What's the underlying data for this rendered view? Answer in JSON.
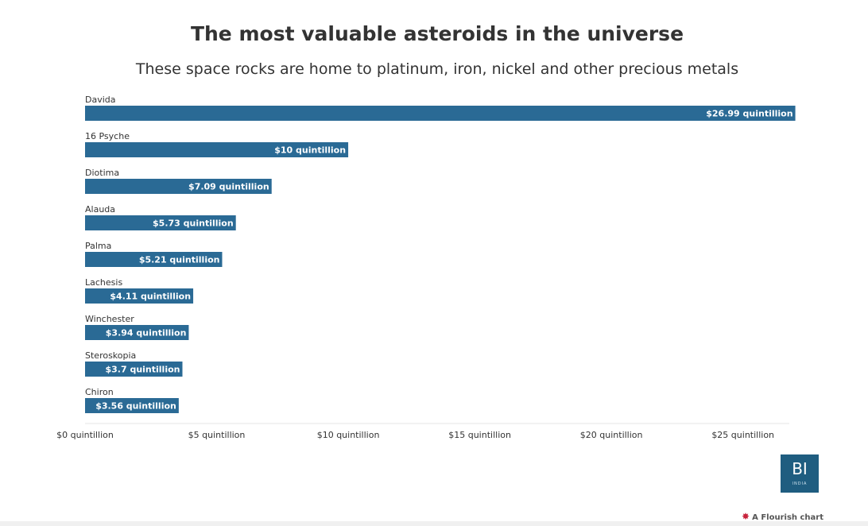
{
  "title": "The most valuable asteroids in the universe",
  "subtitle": "These space rocks are home to platinum, iron, nickel and other precious metals",
  "chart_data": {
    "type": "bar",
    "orientation": "horizontal",
    "categories": [
      "Davida",
      "16 Psyche",
      "Diotima",
      "Alauda",
      "Palma",
      "Lachesis",
      "Winchester",
      "Steroskopia",
      "Chiron"
    ],
    "values": [
      26.99,
      10,
      7.09,
      5.73,
      5.21,
      4.11,
      3.94,
      3.7,
      3.56
    ],
    "value_labels": [
      "$26.99 quintillion",
      "$10 quintillion",
      "$7.09 quintillion",
      "$5.73 quintillion",
      "$5.21 quintillion",
      "$4.11 quintillion",
      "$3.94 quintillion",
      "$3.7 quintillion",
      "$3.56 quintillion"
    ],
    "xlim": [
      0,
      28
    ],
    "ticks": [
      0,
      5,
      10,
      15,
      20,
      25
    ],
    "tick_labels": [
      "$0 quintillion",
      "$5 quintillion",
      "$10 quintillion",
      "$15 quintillion",
      "$20 quintillion",
      "$25 quintillion"
    ],
    "bar_color": "#2a6a95",
    "grid": false,
    "legend": "none"
  },
  "logo": {
    "main": "BI",
    "sub": "INDIA",
    "color": "#1f5d80"
  },
  "credit": {
    "icon": "flourish-icon",
    "text": "A Flourish chart"
  }
}
